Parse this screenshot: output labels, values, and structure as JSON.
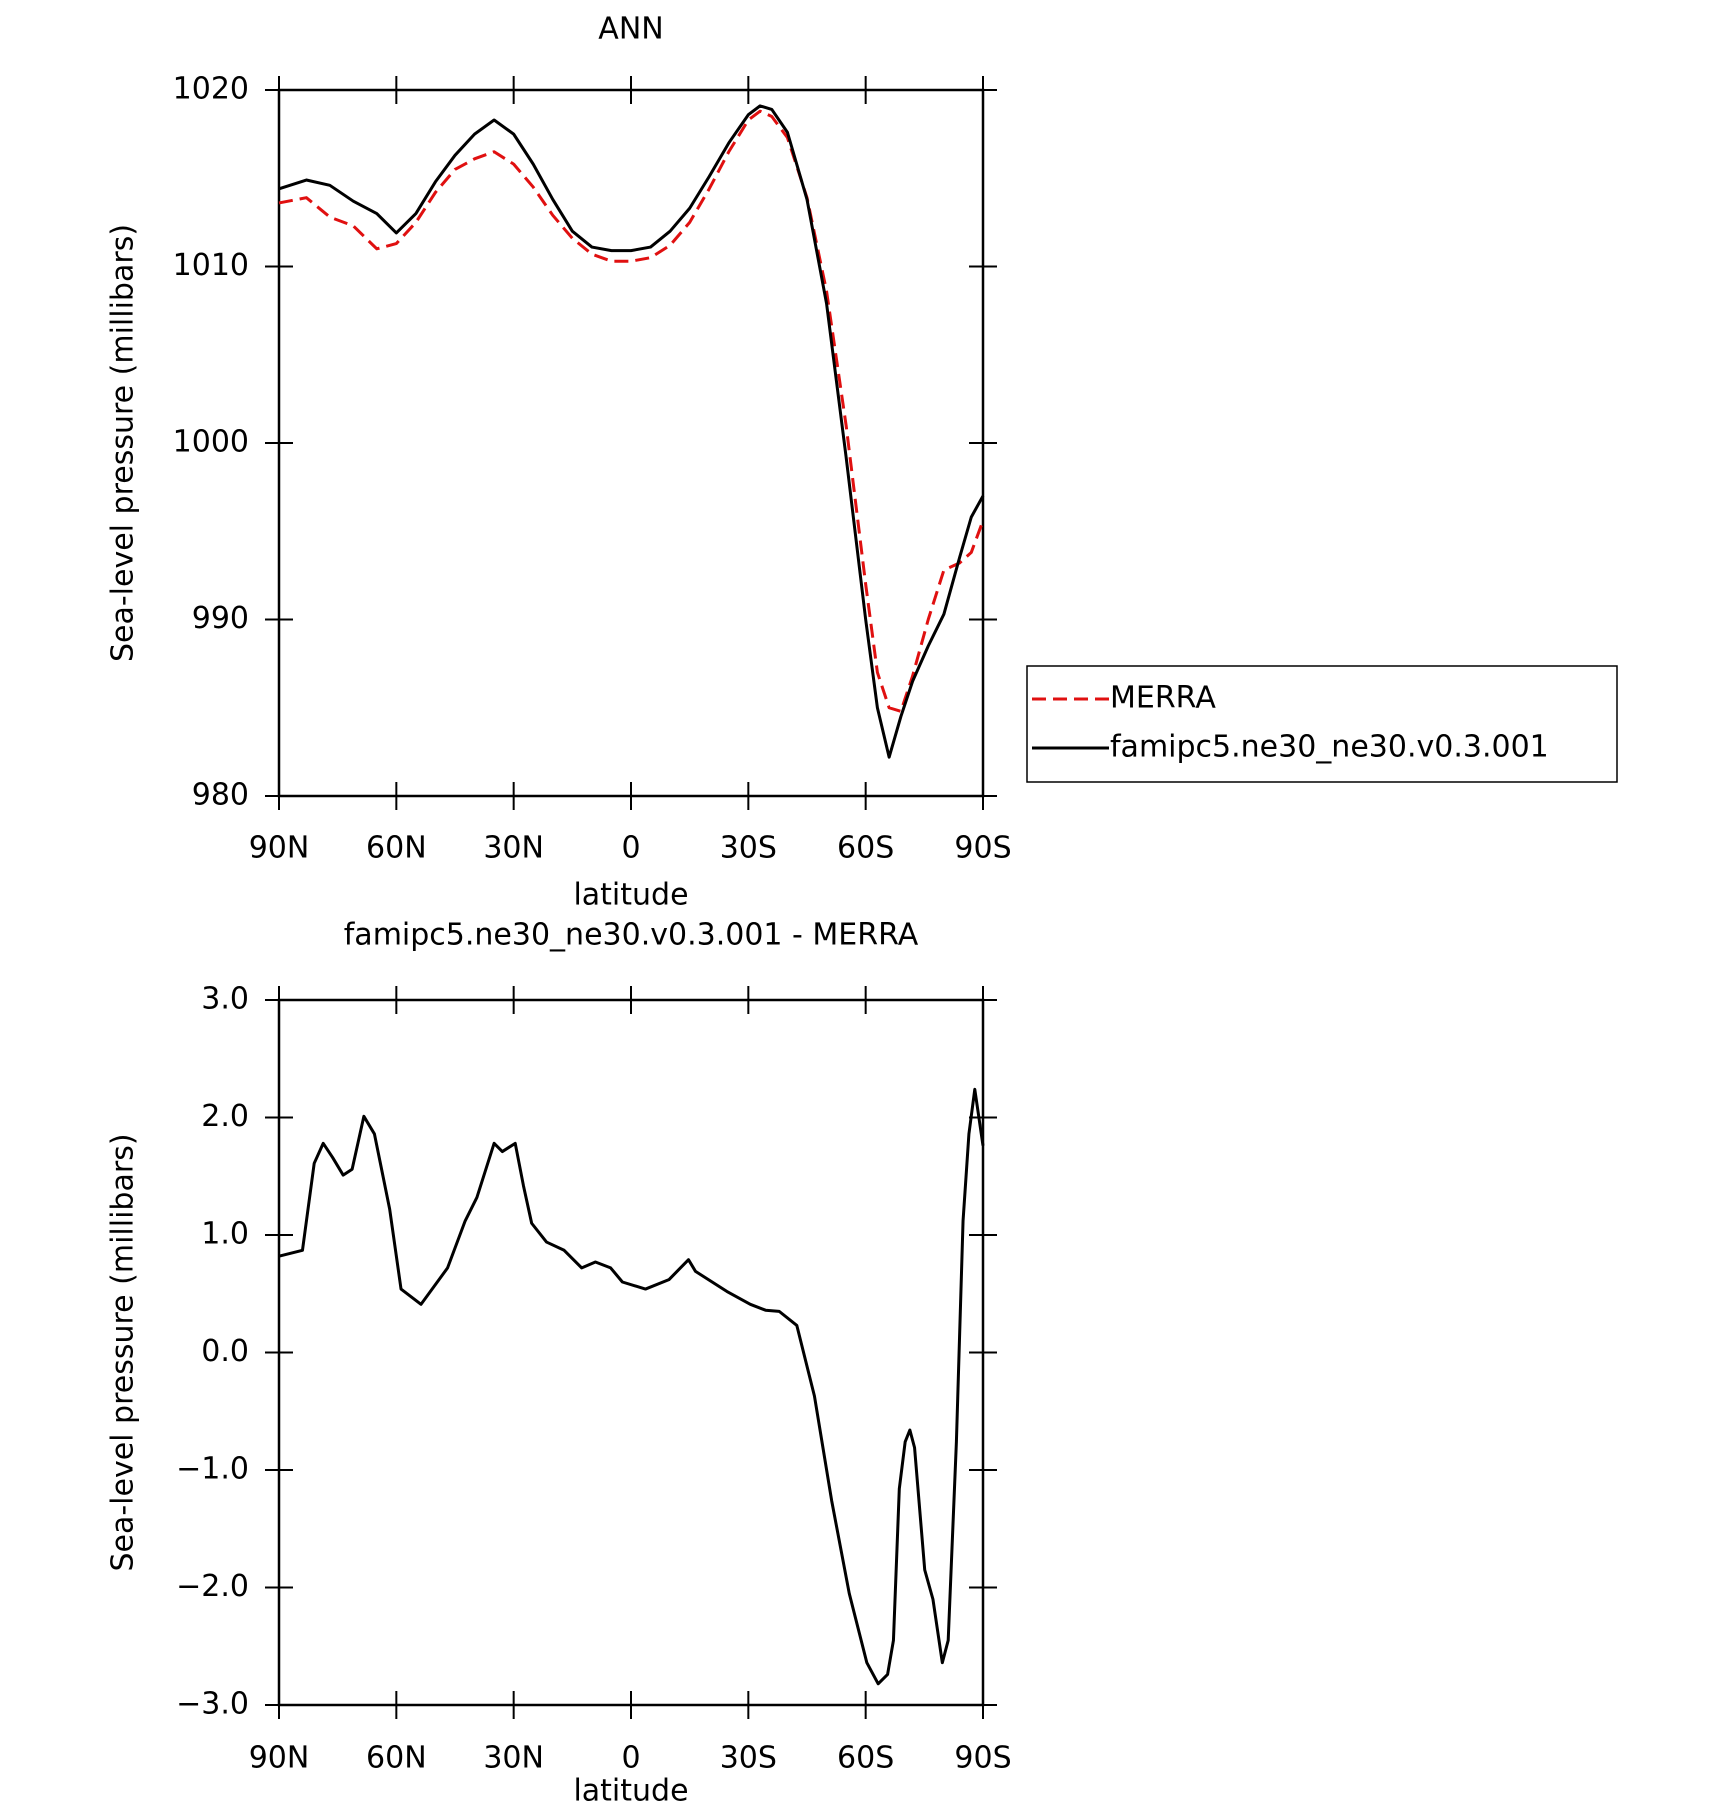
{
  "chart_data": [
    {
      "type": "line",
      "title": "ANN",
      "x_label": "latitude",
      "y_label": "Sea-level pressure (millibars)",
      "x": [
        90,
        83,
        77,
        71,
        65,
        60,
        55,
        50,
        45,
        40,
        35,
        30,
        25,
        20,
        15,
        10,
        5,
        0,
        -5,
        -10,
        -15,
        -20,
        -25,
        -30,
        -33,
        -36,
        -40,
        -45,
        -50,
        -55,
        -60,
        -63,
        -66,
        -69,
        -72,
        -76,
        -80,
        -84,
        -87,
        -90
      ],
      "series": [
        {
          "name": "MERRA",
          "color": "#e01010",
          "linestyle": "dashed",
          "values": [
            1013.6,
            1013.9,
            1012.8,
            1012.3,
            1011.0,
            1011.3,
            1012.5,
            1014.2,
            1015.5,
            1016.1,
            1016.5,
            1015.8,
            1014.5,
            1012.9,
            1011.6,
            1010.7,
            1010.3,
            1010.3,
            1010.5,
            1011.2,
            1012.5,
            1014.4,
            1016.5,
            1018.3,
            1018.8,
            1018.5,
            1017.3,
            1013.9,
            1008.6,
            1001.0,
            992.0,
            987.0,
            985.0,
            984.8,
            986.8,
            990.0,
            992.8,
            993.2,
            993.8,
            995.6
          ]
        },
        {
          "name": "famipc5.ne30_ne30.v0.3.001",
          "color": "#000000",
          "linestyle": "solid",
          "values": [
            1014.4,
            1014.9,
            1014.6,
            1013.7,
            1013.0,
            1011.9,
            1013.0,
            1014.8,
            1016.3,
            1017.5,
            1018.3,
            1017.5,
            1015.8,
            1013.8,
            1012.0,
            1011.1,
            1010.9,
            1010.9,
            1011.1,
            1012.0,
            1013.3,
            1015.1,
            1017.0,
            1018.6,
            1019.1,
            1018.9,
            1017.6,
            1013.8,
            1007.9,
            999.2,
            990.0,
            985.0,
            982.2,
            984.5,
            986.5,
            988.5,
            990.3,
            993.5,
            995.8,
            997.0
          ]
        }
      ],
      "xlim": [
        90,
        -90
      ],
      "xticks": [
        {
          "value": 90,
          "label": "90N"
        },
        {
          "value": 60,
          "label": "60N"
        },
        {
          "value": 30,
          "label": "30N"
        },
        0,
        {
          "value": -30,
          "label": "30S"
        },
        {
          "value": -60,
          "label": "60S"
        },
        {
          "value": -90,
          "label": "90S"
        }
      ],
      "ylim": [
        980,
        1020
      ],
      "yticks": [
        980,
        990,
        1000,
        1010,
        1020
      ],
      "grid": false,
      "legend": "right"
    },
    {
      "type": "line",
      "title": "famipc5.ne30_ne30.v0.3.001 - MERRA",
      "x_label": "latitude",
      "y_label": "Sea-level pressure (millibars)",
      "x": [
        90,
        84,
        81,
        78.7,
        76.3,
        73.6,
        71.3,
        68.3,
        65.6,
        61.7,
        58.8,
        53.7,
        46.9,
        42.4,
        39.4,
        35,
        32.9,
        29.6,
        27.5,
        25.4,
        21.6,
        17.1,
        12.6,
        9.1,
        5.2,
        2.2,
        -3.7,
        -9.7,
        -14.7,
        -16.5,
        -24.5,
        -30.5,
        -34.4,
        -37.9,
        -42.4,
        -46.9,
        -51.3,
        -55.8,
        -60.3,
        -63.2,
        -65.6,
        -67.1,
        -68.6,
        -70.1,
        -71.3,
        -72.5,
        -75.1,
        -77.2,
        -79.6,
        -81.1,
        -83.2,
        -84.9,
        -86.4,
        -87.9,
        -90
      ],
      "series": [
        {
          "name": "famipc5.ne30_ne30.v0.3.001 - MERRA",
          "color": "#000000",
          "linestyle": "solid",
          "values": [
            0.82,
            0.87,
            1.61,
            1.78,
            1.66,
            1.51,
            1.56,
            2.01,
            1.86,
            1.22,
            0.54,
            0.41,
            0.72,
            1.12,
            1.32,
            1.78,
            1.71,
            1.78,
            1.42,
            1.1,
            0.94,
            0.87,
            0.72,
            0.77,
            0.72,
            0.6,
            0.54,
            0.62,
            0.79,
            0.69,
            0.52,
            0.41,
            0.36,
            0.35,
            0.23,
            -0.37,
            -1.26,
            -2.05,
            -2.64,
            -2.82,
            -2.74,
            -2.45,
            -1.16,
            -0.76,
            -0.66,
            -0.81,
            -1.85,
            -2.1,
            -2.64,
            -2.45,
            -0.76,
            1.12,
            1.86,
            2.24,
            1.76
          ]
        }
      ],
      "xlim": [
        90,
        -90
      ],
      "xticks": [
        {
          "value": 90,
          "label": "90N"
        },
        {
          "value": 60,
          "label": "60N"
        },
        {
          "value": 30,
          "label": "30N"
        },
        0,
        {
          "value": -30,
          "label": "30S"
        },
        {
          "value": -60,
          "label": "60S"
        },
        {
          "value": -90,
          "label": "90S"
        }
      ],
      "ylim": [
        -3,
        3
      ],
      "yticks": [
        {
          "value": -3,
          "label": "−3.0"
        },
        {
          "value": -2,
          "label": "−2.0"
        },
        {
          "value": -1,
          "label": "−1.0"
        },
        {
          "value": 0,
          "label": "0.0"
        },
        {
          "value": 1,
          "label": "1.0"
        },
        {
          "value": 2,
          "label": "2.0"
        },
        {
          "value": 3,
          "label": "3.0"
        }
      ],
      "grid": false
    }
  ]
}
